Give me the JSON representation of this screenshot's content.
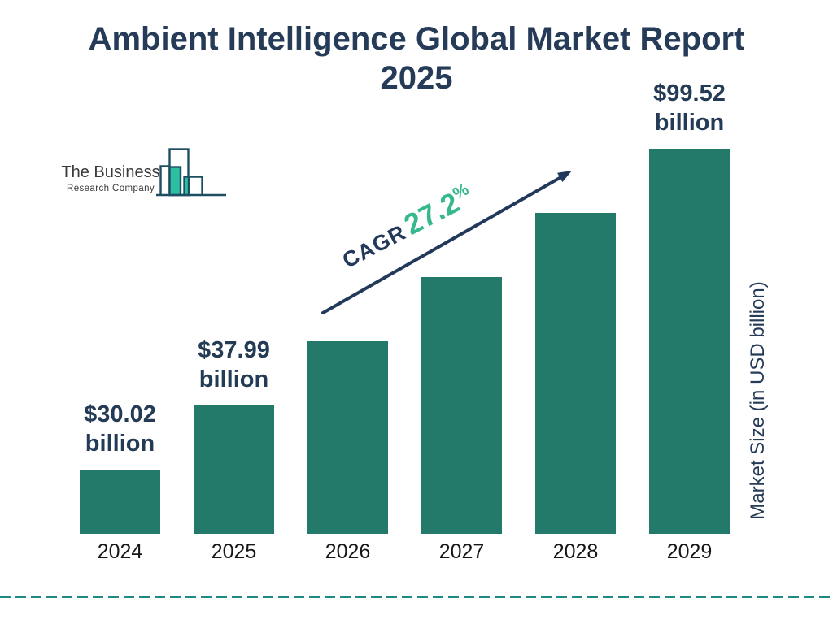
{
  "title": {
    "line1": "Ambient Intelligence Global Market Report",
    "line2": "2025"
  },
  "logo": {
    "line1": "The Business",
    "line2": "Research Company"
  },
  "cagr_annotation": {
    "label": "CAGR",
    "value": "27.2",
    "percent": "%"
  },
  "y_axis_label": "Market Size (in USD billion)",
  "colors": {
    "bar_green": "#237a6b",
    "title_navy": "#253b57",
    "value_label_navy": "#243b55",
    "cagr_green": "#35b98c",
    "arrow_navy": "#22395a",
    "dashed_line_teal": "#1d8a85",
    "logo_green": "#2dbfa4",
    "logo_outline": "#1d4f63",
    "year_label_black": "#161616"
  },
  "chart_data": {
    "type": "bar",
    "title": "Ambient Intelligence Global Market Report 2025",
    "categories": [
      "2024",
      "2025",
      "2026",
      "2027",
      "2028",
      "2029"
    ],
    "values": [
      30.02,
      37.99,
      48.32,
      61.46,
      78.18,
      99.52
    ],
    "estimated_indices": [
      2,
      3,
      4
    ],
    "unit": "USD billion",
    "ylabel": "Market Size (in USD billion)",
    "cagr_percent": 27.2,
    "legend": "none",
    "grid": "off",
    "bar_labels": [
      {
        "line1": "$30.02",
        "line2": "billion"
      },
      {
        "line1": "$37.99",
        "line2": "billion"
      },
      null,
      null,
      null,
      {
        "line1": "$99.52",
        "line2": "billion"
      }
    ]
  }
}
